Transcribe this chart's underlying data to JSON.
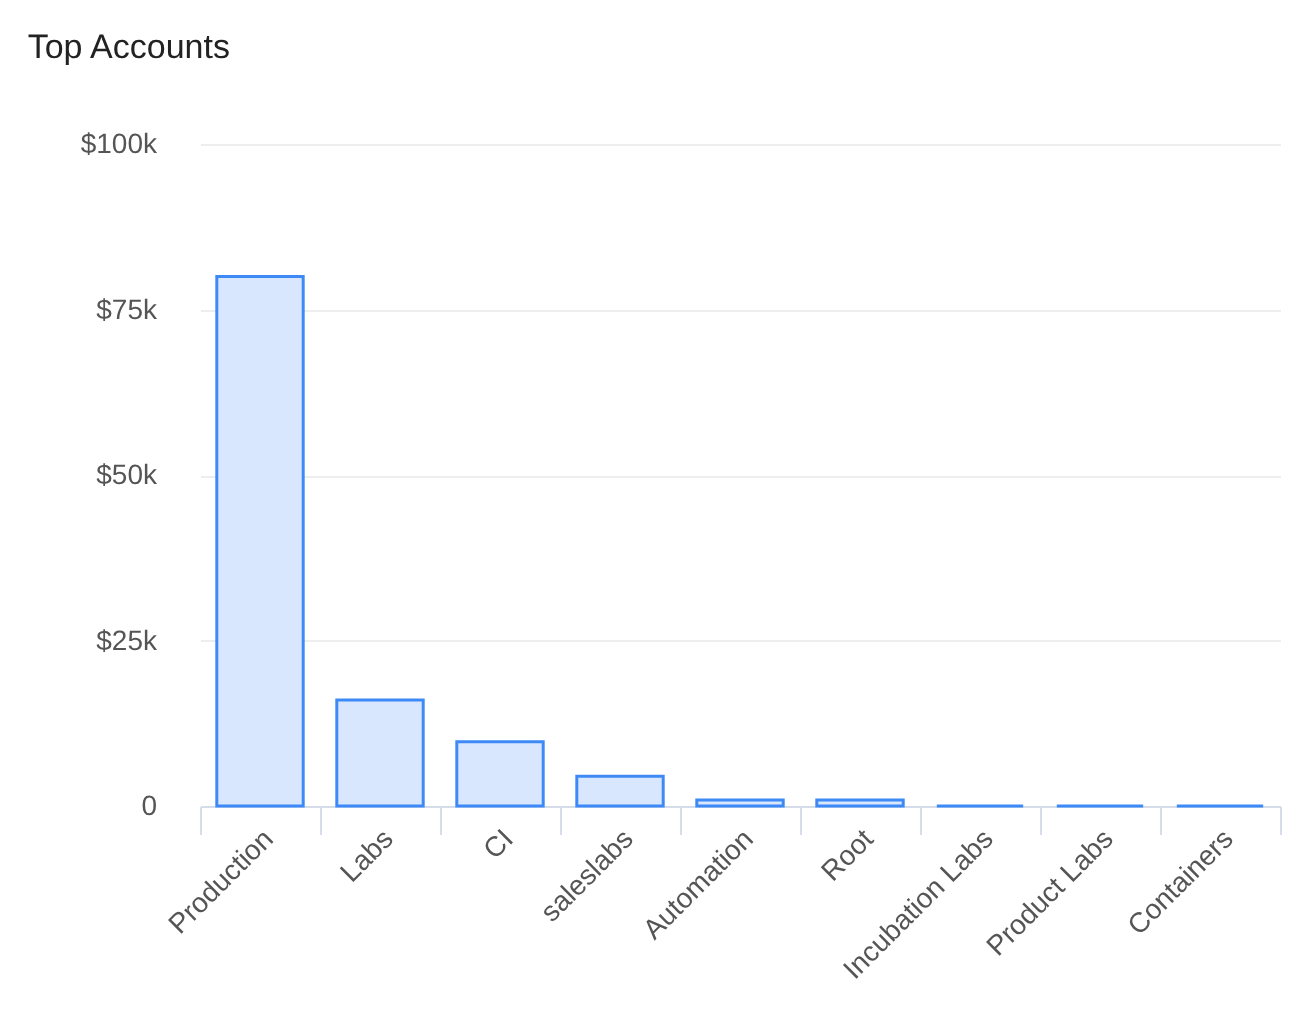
{
  "chart_data": {
    "type": "bar",
    "title": "Top Accounts",
    "categories": [
      "Production",
      "Labs",
      "CI",
      "saleslabs",
      "Automation",
      "Root",
      "Incubation Labs",
      "Product Labs",
      "Containers"
    ],
    "values": [
      80000,
      16000,
      9700,
      4500,
      900,
      900,
      0,
      0,
      0
    ],
    "color": "#3d8af7",
    "ylim": [
      0,
      100000
    ],
    "yticks": [
      {
        "value": 0,
        "label": "0"
      },
      {
        "value": 25000,
        "label": "$25k"
      },
      {
        "value": 50000,
        "label": "$50k"
      },
      {
        "value": 75000,
        "label": "$75k"
      },
      {
        "value": 100000,
        "label": "$100k"
      }
    ],
    "grid": "y"
  }
}
